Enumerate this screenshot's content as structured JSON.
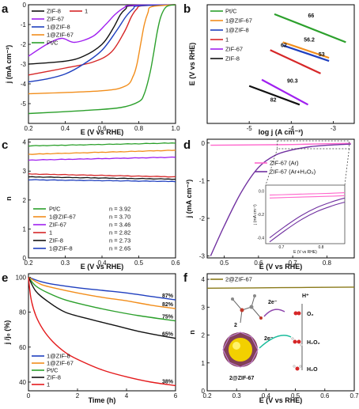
{
  "chart_data": [
    {
      "panel": "a",
      "type": "line",
      "xlabel": "E (V vs RHE)",
      "ylabel": "j (mA cm⁻²)",
      "xlim": [
        0.2,
        1.0
      ],
      "ylim": [
        -6,
        0
      ],
      "xticks": [
        "0.2",
        "0.4",
        "0.6",
        "0.8",
        "1.0"
      ],
      "yticks": [
        "0",
        "-1",
        "-2",
        "-3",
        "-4",
        "-5"
      ],
      "legend": [
        "ZIF-8",
        "1",
        "ZIF-67",
        "1@ZIF-8",
        "1@ZIF-67",
        "Pt/C"
      ],
      "series": [
        {
          "name": "ZIF-8",
          "color": "#111111",
          "x": [
            0.2,
            0.4,
            0.5,
            0.6,
            0.66,
            0.7,
            0.73,
            0.76,
            1.0
          ],
          "y": [
            -3.0,
            -2.85,
            -2.6,
            -2.0,
            -1.2,
            -0.5,
            -0.2,
            -0.05,
            0
          ]
        },
        {
          "name": "1",
          "color": "#d62728",
          "x": [
            0.2,
            0.4,
            0.55,
            0.65,
            0.72,
            0.76,
            0.79,
            0.82,
            1.0
          ],
          "y": [
            -3.55,
            -3.2,
            -2.9,
            -2.4,
            -1.4,
            -0.6,
            -0.2,
            -0.05,
            0
          ]
        },
        {
          "name": "ZIF-67",
          "color": "#a020f0",
          "x": [
            0.2,
            0.3,
            0.38,
            0.45,
            0.55,
            0.62,
            0.67,
            0.72,
            0.76,
            1.0
          ],
          "y": [
            -2.6,
            -2.0,
            -1.7,
            -1.9,
            -1.6,
            -1.0,
            -0.5,
            -0.15,
            -0.03,
            0
          ]
        },
        {
          "name": "1@ZIF-8",
          "color": "#1f3fbf",
          "x": [
            0.2,
            0.3,
            0.4,
            0.5,
            0.6,
            0.68,
            0.73,
            0.77,
            0.8,
            1.0
          ],
          "y": [
            -3.9,
            -3.75,
            -3.5,
            -3.0,
            -2.3,
            -1.3,
            -0.6,
            -0.2,
            -0.05,
            0
          ]
        },
        {
          "name": "1@ZIF-67",
          "color": "#f28e1c",
          "x": [
            0.2,
            0.6,
            0.73,
            0.77,
            0.79,
            0.81,
            0.83,
            0.85,
            0.87,
            1.0
          ],
          "y": [
            -4.5,
            -4.35,
            -4.1,
            -3.6,
            -3.0,
            -2.0,
            -1.0,
            -0.4,
            -0.1,
            0
          ]
        },
        {
          "name": "Pt/C",
          "color": "#2ca02c",
          "x": [
            0.2,
            0.5,
            0.7,
            0.8,
            0.83,
            0.86,
            0.88,
            0.9,
            0.92,
            0.95,
            1.0
          ],
          "y": [
            -5.5,
            -5.35,
            -5.2,
            -4.9,
            -4.5,
            -3.5,
            -2.5,
            -1.4,
            -0.6,
            -0.1,
            0
          ]
        }
      ]
    },
    {
      "panel": "b",
      "type": "line",
      "xlabel": "log j (A cm⁻²)",
      "ylabel": "E (V vs RHE)",
      "xlim": [
        -6,
        -2.5
      ],
      "ylim": [
        0.6,
        0.98
      ],
      "xticks": [
        "-5",
        "-4",
        "-3"
      ],
      "legend": [
        "Pt/C",
        "1@ZIF-67",
        "1@ZIF-8",
        "1",
        "ZIF-67",
        "ZIF-8"
      ],
      "series": [
        {
          "name": "Pt/C",
          "color": "#2ca02c",
          "x": [
            -4.4,
            -2.7
          ],
          "y": [
            0.95,
            0.86
          ]
        },
        {
          "name": "1@ZIF-67",
          "color": "#f28e1c",
          "x": [
            -4.2,
            -3.1
          ],
          "y": [
            0.86,
            0.81
          ]
        },
        {
          "name": "1@ZIF-8",
          "color": "#1f3fbf",
          "x": [
            -4.2,
            -3.1
          ],
          "y": [
            0.85,
            0.8
          ]
        },
        {
          "name": "1",
          "color": "#d62728",
          "x": [
            -4.5,
            -3.3
          ],
          "y": [
            0.835,
            0.76
          ]
        },
        {
          "name": "ZIF-67",
          "color": "#a020f0",
          "x": [
            -4.7,
            -3.6
          ],
          "y": [
            0.74,
            0.66
          ]
        },
        {
          "name": "ZIF-8",
          "color": "#111111",
          "x": [
            -5.0,
            -3.8
          ],
          "y": [
            0.72,
            0.66
          ]
        }
      ],
      "annotations": [
        "66",
        "56.2",
        "62",
        "53",
        "90.3",
        "82"
      ]
    },
    {
      "panel": "c",
      "type": "line",
      "xlabel": "E (V vs RHE)",
      "ylabel": "n",
      "xlim": [
        0.2,
        0.6
      ],
      "ylim": [
        0,
        4.1
      ],
      "xticks": [
        "0.2",
        "0.3",
        "0.4",
        "0.5",
        "0.6"
      ],
      "yticks": [
        "0",
        "1",
        "2",
        "3",
        "4"
      ],
      "legend": [
        {
          "name": "Pt/C",
          "value": "n = 3.92"
        },
        {
          "name": "1@ZIF-67",
          "value": "n = 3.70"
        },
        {
          "name": "ZIF-67",
          "value": "n = 3.46"
        },
        {
          "name": "1",
          "value": "n = 2.82"
        },
        {
          "name": "ZIF-8",
          "value": "n = 2.73"
        },
        {
          "name": "1@ZIF-8",
          "value": "n = 2.65"
        }
      ],
      "series": [
        {
          "name": "Pt/C",
          "color": "#2ca02c",
          "y0": 3.87,
          "y1": 3.97
        },
        {
          "name": "1@ZIF-67",
          "color": "#f28e1c",
          "y0": 3.58,
          "y1": 3.72
        },
        {
          "name": "ZIF-67",
          "color": "#a020f0",
          "y0": 3.38,
          "y1": 3.48
        },
        {
          "name": "1",
          "color": "#d62728",
          "y0": 2.9,
          "y1": 2.8
        },
        {
          "name": "ZIF-8",
          "color": "#111111",
          "y0": 2.8,
          "y1": 2.72
        },
        {
          "name": "1@ZIF-8",
          "color": "#1f3fbf",
          "y0": 2.7,
          "y1": 2.64
        }
      ]
    },
    {
      "panel": "d",
      "type": "line",
      "xlabel": "E (V vs RHE)",
      "ylabel": "j (mA cm⁻²)",
      "xlim": [
        0.45,
        0.88
      ],
      "ylim": [
        -3.05,
        0.1
      ],
      "xticks": [
        "0.5",
        "0.6",
        "0.7",
        "0.8"
      ],
      "yticks": [
        "0",
        "-1",
        "-2",
        "-3"
      ],
      "legend": [
        "ZIF-67 (Ar)",
        "ZIF-67 (Ar+H₂O₂)"
      ],
      "series": [
        {
          "name": "ZIF-67 (Ar)",
          "color": "#ff66cc",
          "x": [
            0.46,
            0.6,
            0.7,
            0.8,
            0.87
          ],
          "y": [
            -0.06,
            -0.05,
            -0.04,
            -0.02,
            -0.01
          ]
        },
        {
          "name": "ZIF-67 (Ar+H₂O₂)",
          "color": "#7030a0",
          "x": [
            0.46,
            0.5,
            0.55,
            0.6,
            0.65,
            0.7,
            0.75,
            0.8,
            0.87
          ],
          "y": [
            -3.0,
            -2.2,
            -1.3,
            -0.65,
            -0.32,
            -0.18,
            -0.1,
            -0.06,
            -0.03
          ]
        }
      ],
      "inset": {
        "xlabel": "E (V vs RHE)",
        "ylabel": "j (mA cm⁻²)",
        "xticks": [
          "0.7",
          "0.8"
        ],
        "yticks": [
          "0.0",
          "-0.2",
          "-0.4"
        ],
        "xlim": [
          0.66,
          0.86
        ],
        "ylim": [
          -0.45,
          0.05
        ]
      }
    },
    {
      "panel": "e",
      "type": "line",
      "xlabel": "Time (h)",
      "ylabel": "j /j₀ (%)",
      "xlim": [
        0,
        6
      ],
      "ylim": [
        35,
        102
      ],
      "xticks": [
        "0",
        "2",
        "4",
        "6"
      ],
      "yticks": [
        "40",
        "60",
        "80",
        "100"
      ],
      "legend": [
        "1@ZIF-8",
        "1@ZIF-67",
        "Pt/C",
        "ZIF-8",
        "1"
      ],
      "series": [
        {
          "name": "1@ZIF-8",
          "color": "#1f3fbf",
          "label": "87%",
          "x": [
            0,
            0.5,
            1,
            2,
            3,
            4,
            5,
            6
          ],
          "y": [
            100,
            97.5,
            96,
            94,
            92.5,
            91,
            89,
            87
          ]
        },
        {
          "name": "1@ZIF-67",
          "color": "#f28e1c",
          "label": "82%",
          "x": [
            0,
            0.5,
            1,
            2,
            3,
            4,
            5,
            6
          ],
          "y": [
            100,
            96,
            94,
            91,
            88.5,
            86.5,
            84,
            82
          ]
        },
        {
          "name": "Pt/C",
          "color": "#2ca02c",
          "label": "75%",
          "x": [
            0,
            0.3,
            0.8,
            1.5,
            2.5,
            3.5,
            4.5,
            6
          ],
          "y": [
            100,
            95,
            91,
            87,
            83.5,
            80.5,
            78,
            75
          ]
        },
        {
          "name": "ZIF-8",
          "color": "#111111",
          "label": "65%",
          "x": [
            0,
            0.3,
            0.8,
            1.5,
            2.5,
            3.5,
            4.5,
            6
          ],
          "y": [
            100,
            92,
            86,
            80,
            76,
            72.5,
            69,
            65
          ]
        },
        {
          "name": "1",
          "color": "#e41a1c",
          "label": "38%",
          "x": [
            0,
            0.1,
            0.3,
            0.6,
            1,
            1.5,
            2,
            3,
            4,
            5,
            6
          ],
          "y": [
            100,
            88,
            78,
            70,
            63,
            57,
            53,
            47,
            43,
            40,
            38
          ]
        }
      ]
    },
    {
      "panel": "f",
      "type": "line",
      "xlabel": "E (V vs RHE)",
      "ylabel": "n",
      "xlim": [
        0.2,
        0.7
      ],
      "ylim": [
        0,
        4.2
      ],
      "xticks": [
        "0.2",
        "0.3",
        "0.4",
        "0.5",
        "0.6",
        "0.7"
      ],
      "yticks": [
        "0",
        "1",
        "2",
        "3",
        "4"
      ],
      "legend": [
        "2@ZIF-67"
      ],
      "series": [
        {
          "name": "2@ZIF-67",
          "color": "#8a7a1a",
          "x": [
            0.2,
            0.45,
            0.7
          ],
          "y": [
            3.68,
            3.7,
            3.72
          ]
        }
      ],
      "scheme_labels": {
        "electron1": "2e⁻",
        "electron2": "2e⁻",
        "proton": "H⁺",
        "o2": "O₂",
        "h2o2": "H₂O₂",
        "h2o": "H₂O",
        "compound": "2",
        "composite": "2@ZIF-67"
      }
    }
  ]
}
